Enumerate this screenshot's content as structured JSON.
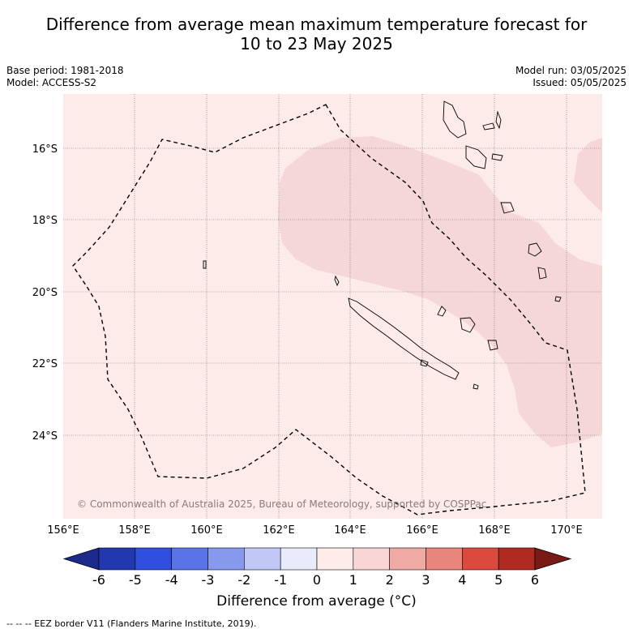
{
  "title_line1": "Difference from average mean maximum temperature forecast for",
  "title_line2": "10 to 23 May 2025",
  "base_period": "Base period: 1981-2018",
  "model": "Model: ACCESS-S2",
  "model_run": "Model run: 03/05/2025",
  "issued": "Issued: 05/05/2025",
  "copyright": "© Commonwealth of Australia 2025, Bureau of Meteorology, supported by COSPPac",
  "lon_ticks": [
    "156°E",
    "158°E",
    "160°E",
    "162°E",
    "164°E",
    "166°E",
    "168°E",
    "170°E"
  ],
  "lat_ticks": [
    "16°S",
    "18°S",
    "20°S",
    "22°S",
    "24°S"
  ],
  "colorbar": {
    "ticks": [
      "-6",
      "-5",
      "-4",
      "-3",
      "-2",
      "-1",
      "0",
      "1",
      "2",
      "3",
      "4",
      "5",
      "6"
    ],
    "colors": [
      "#1c2a8c",
      "#2238b0",
      "#2f4fe0",
      "#5a74e8",
      "#8799ec",
      "#c1c8f5",
      "#e8ebfb",
      "#fdecea",
      "#f8d6d6",
      "#f0aaa6",
      "#e8857c",
      "#dc4a3d",
      "#b02a22",
      "#7a1a14"
    ],
    "label": "Difference from average (°C)"
  },
  "map_colors": {
    "background": "#fcebe9",
    "anomaly_1_2": "#f6d7d7"
  },
  "footnote": "-- -- -- EEZ border V11 (Flanders Marine Institute, 2019)."
}
